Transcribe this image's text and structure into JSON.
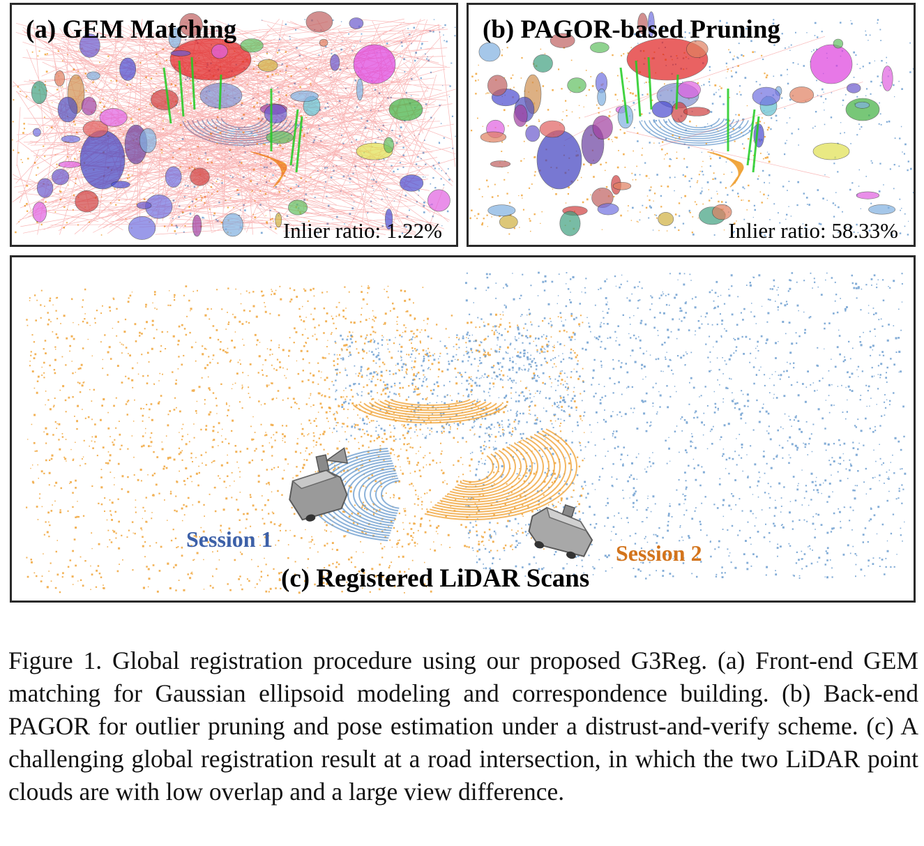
{
  "panels": {
    "a": {
      "title": "(a) GEM Matching",
      "inlier_ratio": "Inlier ratio: 1.22%"
    },
    "b": {
      "title": "(b) PAGOR-based Pruning",
      "inlier_ratio": "Inlier ratio: 58.33%"
    },
    "c": {
      "title": "(c) Registered LiDAR Scans",
      "session_1": "Session 1",
      "session_2": "Session 2"
    }
  },
  "caption": "Figure 1.  Global registration procedure using our proposed G3Reg. (a) Front-end GEM matching for Gaussian ellipsoid modeling and correspondence building. (b) Back-end PAGOR for outlier pruning and pose estimation under a distrust-and-verify scheme. (c) A challenging global registration result at a road intersection, in which the two LiDAR point clouds are with low overlap and a large view difference.",
  "colors": {
    "session_1_points": "#6f9fd0",
    "session_2_points": "#f0a43a",
    "outlier_lines": "#ee3030",
    "inlier_lines": "#22cc22",
    "session_1_label": "#3c60a8",
    "session_2_label": "#d3741c"
  }
}
